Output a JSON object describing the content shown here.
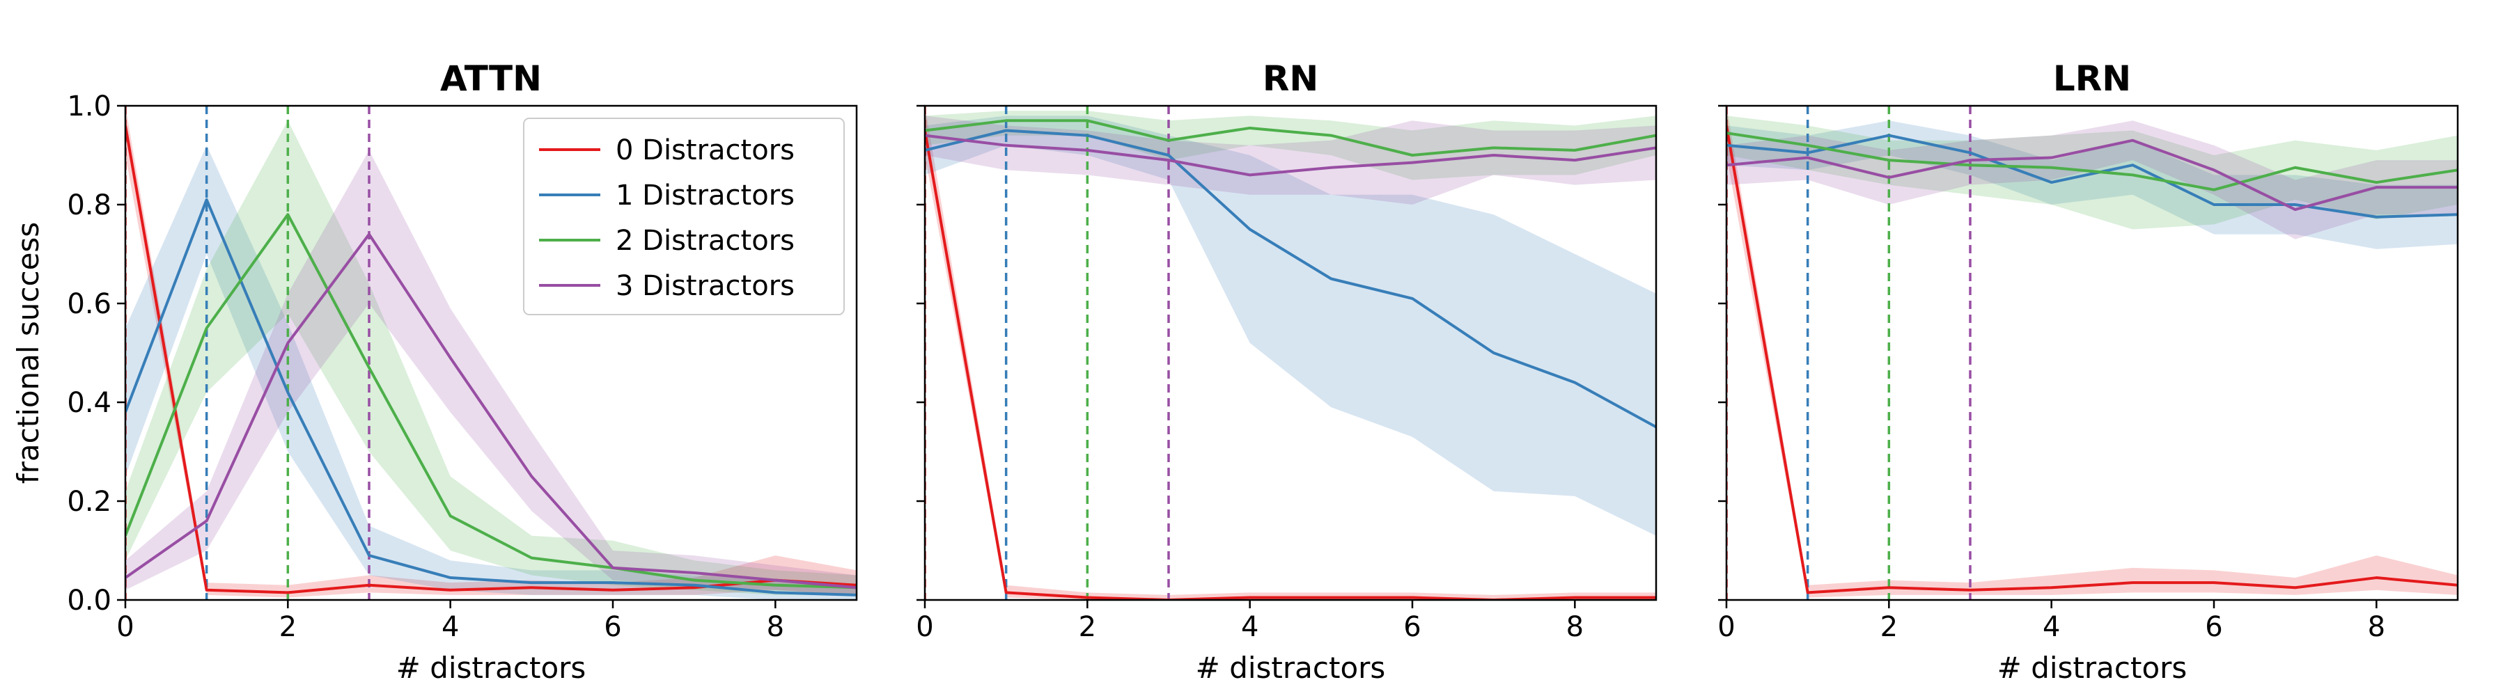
{
  "colors": {
    "series": [
      "#e41a1c",
      "#377eb8",
      "#4daf4a",
      "#984ea3"
    ]
  },
  "chart_data": [
    {
      "type": "line",
      "title": "ATTN",
      "xlabel": "# distractors",
      "ylabel": "fractional success",
      "xlim": [
        0,
        9
      ],
      "ylim": [
        0,
        1
      ],
      "xticks": [
        "0",
        "2",
        "4",
        "6",
        "8"
      ],
      "yticks": [
        "0.0",
        "0.2",
        "0.4",
        "0.6",
        "0.8",
        "1.0"
      ],
      "legend": "top-right",
      "shaded_band": true,
      "vlines": [
        0,
        1,
        2,
        3
      ],
      "x": [
        0,
        1,
        2,
        3,
        4,
        5,
        6,
        7,
        8,
        9
      ],
      "series": [
        {
          "name": "0 Distractors",
          "values": [
            0.96,
            0.02,
            0.015,
            0.03,
            0.02,
            0.025,
            0.02,
            0.025,
            0.04,
            0.03
          ],
          "lower": [
            0.9,
            0.01,
            0.005,
            0.015,
            0.01,
            0.01,
            0.01,
            0.01,
            0.02,
            0.01
          ],
          "upper": [
            1.0,
            0.035,
            0.03,
            0.05,
            0.035,
            0.04,
            0.035,
            0.045,
            0.09,
            0.06
          ]
        },
        {
          "name": "1 Distractors",
          "values": [
            0.38,
            0.81,
            0.42,
            0.09,
            0.045,
            0.035,
            0.035,
            0.03,
            0.015,
            0.01
          ],
          "lower": [
            0.25,
            0.7,
            0.3,
            0.05,
            0.02,
            0.01,
            0.01,
            0.01,
            0.0,
            0.0
          ],
          "upper": [
            0.55,
            0.92,
            0.56,
            0.15,
            0.08,
            0.06,
            0.06,
            0.05,
            0.04,
            0.03
          ]
        },
        {
          "name": "2 Distractors",
          "values": [
            0.13,
            0.55,
            0.78,
            0.47,
            0.17,
            0.085,
            0.065,
            0.04,
            0.03,
            0.025
          ],
          "lower": [
            0.08,
            0.42,
            0.58,
            0.3,
            0.1,
            0.05,
            0.03,
            0.02,
            0.01,
            0.01
          ],
          "upper": [
            0.22,
            0.67,
            0.97,
            0.64,
            0.25,
            0.13,
            0.12,
            0.08,
            0.06,
            0.05
          ]
        },
        {
          "name": "3 Distractors",
          "values": [
            0.045,
            0.16,
            0.52,
            0.74,
            0.49,
            0.25,
            0.065,
            0.055,
            0.04,
            0.025
          ],
          "lower": [
            0.02,
            0.1,
            0.38,
            0.6,
            0.38,
            0.18,
            0.04,
            0.03,
            0.02,
            0.01
          ],
          "upper": [
            0.08,
            0.22,
            0.62,
            0.91,
            0.59,
            0.34,
            0.1,
            0.09,
            0.07,
            0.05
          ]
        }
      ]
    },
    {
      "type": "line",
      "title": "RN",
      "xlabel": "# distractors",
      "ylabel": "",
      "xlim": [
        0,
        9
      ],
      "ylim": [
        0,
        1
      ],
      "xticks": [
        "0",
        "2",
        "4",
        "6",
        "8"
      ],
      "yticks": [
        "",
        "",
        "",
        "",
        "",
        ""
      ],
      "legend": "none",
      "shaded_band": true,
      "vlines": [
        0,
        1,
        2,
        3
      ],
      "x": [
        0,
        1,
        2,
        3,
        4,
        5,
        6,
        7,
        8,
        9
      ],
      "series": [
        {
          "name": "0 Distractors",
          "values": [
            0.95,
            0.015,
            0.005,
            0.0,
            0.005,
            0.005,
            0.005,
            0.0,
            0.005,
            0.005
          ],
          "lower": [
            0.9,
            0.005,
            0.0,
            0.0,
            0.0,
            0.0,
            0.0,
            0.0,
            0.0,
            0.0
          ],
          "upper": [
            1.0,
            0.03,
            0.015,
            0.01,
            0.015,
            0.015,
            0.015,
            0.01,
            0.015,
            0.015
          ]
        },
        {
          "name": "1 Distractors",
          "values": [
            0.91,
            0.95,
            0.94,
            0.9,
            0.75,
            0.65,
            0.61,
            0.5,
            0.44,
            0.35
          ],
          "lower": [
            0.86,
            0.92,
            0.9,
            0.85,
            0.52,
            0.39,
            0.33,
            0.22,
            0.21,
            0.13
          ],
          "upper": [
            0.96,
            0.98,
            0.98,
            0.94,
            0.9,
            0.82,
            0.82,
            0.78,
            0.7,
            0.62
          ]
        },
        {
          "name": "2 Distractors",
          "values": [
            0.95,
            0.97,
            0.97,
            0.93,
            0.955,
            0.94,
            0.9,
            0.915,
            0.91,
            0.94
          ],
          "lower": [
            0.92,
            0.94,
            0.94,
            0.89,
            0.92,
            0.9,
            0.85,
            0.86,
            0.86,
            0.9
          ],
          "upper": [
            0.98,
            0.99,
            0.99,
            0.97,
            0.98,
            0.97,
            0.95,
            0.97,
            0.96,
            0.98
          ]
        },
        {
          "name": "3 Distractors",
          "values": [
            0.94,
            0.92,
            0.91,
            0.89,
            0.86,
            0.875,
            0.885,
            0.9,
            0.89,
            0.915
          ],
          "lower": [
            0.9,
            0.87,
            0.86,
            0.84,
            0.82,
            0.82,
            0.8,
            0.86,
            0.84,
            0.85
          ],
          "upper": [
            0.98,
            0.96,
            0.95,
            0.93,
            0.92,
            0.93,
            0.97,
            0.95,
            0.95,
            0.96
          ]
        }
      ]
    },
    {
      "type": "line",
      "title": "LRN",
      "xlabel": "# distractors",
      "ylabel": "",
      "xlim": [
        0,
        9
      ],
      "ylim": [
        0,
        1
      ],
      "xticks": [
        "0",
        "2",
        "4",
        "6",
        "8"
      ],
      "yticks": [
        "",
        "",
        "",
        "",
        "",
        ""
      ],
      "legend": "none",
      "shaded_band": true,
      "vlines": [
        0,
        1,
        2,
        3
      ],
      "x": [
        0,
        1,
        2,
        3,
        4,
        5,
        6,
        7,
        8,
        9
      ],
      "series": [
        {
          "name": "0 Distractors",
          "values": [
            0.96,
            0.015,
            0.025,
            0.02,
            0.025,
            0.035,
            0.035,
            0.025,
            0.045,
            0.03
          ],
          "lower": [
            0.9,
            0.005,
            0.01,
            0.01,
            0.01,
            0.015,
            0.015,
            0.01,
            0.02,
            0.01
          ],
          "upper": [
            1.0,
            0.03,
            0.04,
            0.035,
            0.05,
            0.065,
            0.06,
            0.045,
            0.09,
            0.05
          ]
        },
        {
          "name": "1 Distractors",
          "values": [
            0.92,
            0.905,
            0.94,
            0.905,
            0.845,
            0.88,
            0.8,
            0.8,
            0.775,
            0.78
          ],
          "lower": [
            0.88,
            0.87,
            0.9,
            0.86,
            0.8,
            0.82,
            0.74,
            0.74,
            0.71,
            0.72
          ],
          "upper": [
            0.96,
            0.94,
            0.97,
            0.94,
            0.89,
            0.93,
            0.86,
            0.86,
            0.84,
            0.84
          ]
        },
        {
          "name": "2 Distractors",
          "values": [
            0.945,
            0.92,
            0.89,
            0.88,
            0.875,
            0.86,
            0.83,
            0.875,
            0.845,
            0.87
          ],
          "lower": [
            0.9,
            0.87,
            0.84,
            0.82,
            0.8,
            0.75,
            0.76,
            0.81,
            0.77,
            0.8
          ],
          "upper": [
            0.98,
            0.96,
            0.93,
            0.93,
            0.94,
            0.95,
            0.9,
            0.93,
            0.91,
            0.94
          ]
        },
        {
          "name": "3 Distractors",
          "values": [
            0.88,
            0.895,
            0.855,
            0.89,
            0.895,
            0.93,
            0.87,
            0.79,
            0.835,
            0.835
          ],
          "lower": [
            0.84,
            0.85,
            0.8,
            0.84,
            0.85,
            0.89,
            0.82,
            0.73,
            0.78,
            0.78
          ],
          "upper": [
            0.92,
            0.94,
            0.91,
            0.93,
            0.94,
            0.97,
            0.92,
            0.85,
            0.89,
            0.89
          ]
        }
      ]
    }
  ]
}
